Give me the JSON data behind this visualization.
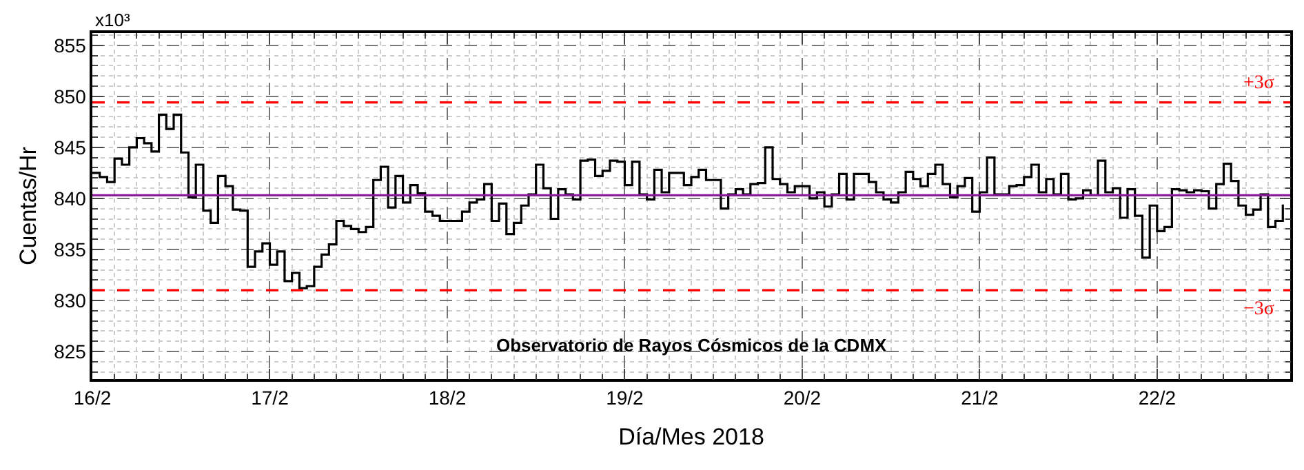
{
  "chart_data": {
    "type": "step",
    "title": "Observatorio de Rayos Cósmicos de la CDMX",
    "xlabel": "Día/Mes 2018",
    "ylabel": "Cuentas/Hr",
    "annotations": [
      "x10³"
    ],
    "x": [
      "2018-02-16T00:00",
      "2018-02-16T01:00",
      "2018-02-16T02:00",
      "2018-02-16T03:00",
      "2018-02-16T04:00",
      "2018-02-16T05:00",
      "2018-02-16T06:00",
      "2018-02-16T07:00",
      "2018-02-16T08:00",
      "2018-02-16T09:00",
      "2018-02-16T10:00",
      "2018-02-16T11:00",
      "2018-02-16T12:00",
      "2018-02-16T13:00",
      "2018-02-16T14:00",
      "2018-02-16T15:00",
      "2018-02-16T16:00",
      "2018-02-16T17:00",
      "2018-02-16T18:00",
      "2018-02-16T19:00",
      "2018-02-16T20:00",
      "2018-02-16T21:00",
      "2018-02-16T22:00",
      "2018-02-16T23:00",
      "2018-02-17T00:00",
      "2018-02-17T01:00",
      "2018-02-17T02:00",
      "2018-02-17T03:00",
      "2018-02-17T04:00",
      "2018-02-17T05:00",
      "2018-02-17T06:00",
      "2018-02-17T07:00",
      "2018-02-17T08:00",
      "2018-02-17T09:00",
      "2018-02-17T10:00",
      "2018-02-17T11:00",
      "2018-02-17T12:00",
      "2018-02-17T13:00",
      "2018-02-17T14:00",
      "2018-02-17T15:00",
      "2018-02-17T16:00",
      "2018-02-17T17:00",
      "2018-02-17T18:00",
      "2018-02-17T19:00",
      "2018-02-17T20:00",
      "2018-02-17T21:00",
      "2018-02-17T22:00",
      "2018-02-17T23:00",
      "2018-02-18T00:00",
      "2018-02-18T01:00",
      "2018-02-18T02:00",
      "2018-02-18T03:00",
      "2018-02-18T04:00",
      "2018-02-18T05:00",
      "2018-02-18T06:00",
      "2018-02-18T07:00",
      "2018-02-18T08:00",
      "2018-02-18T09:00",
      "2018-02-18T10:00",
      "2018-02-18T11:00",
      "2018-02-18T12:00",
      "2018-02-18T13:00",
      "2018-02-18T14:00",
      "2018-02-18T15:00",
      "2018-02-18T16:00",
      "2018-02-18T17:00",
      "2018-02-18T18:00",
      "2018-02-18T19:00",
      "2018-02-18T20:00",
      "2018-02-18T21:00",
      "2018-02-18T22:00",
      "2018-02-18T23:00",
      "2018-02-19T00:00",
      "2018-02-19T01:00",
      "2018-02-19T02:00",
      "2018-02-19T03:00",
      "2018-02-19T04:00",
      "2018-02-19T05:00",
      "2018-02-19T06:00",
      "2018-02-19T07:00",
      "2018-02-19T08:00",
      "2018-02-19T09:00",
      "2018-02-19T10:00",
      "2018-02-19T11:00",
      "2018-02-19T12:00",
      "2018-02-19T13:00",
      "2018-02-19T14:00",
      "2018-02-19T15:00",
      "2018-02-19T16:00",
      "2018-02-19T17:00",
      "2018-02-19T18:00",
      "2018-02-19T19:00",
      "2018-02-19T20:00",
      "2018-02-19T21:00",
      "2018-02-19T22:00",
      "2018-02-19T23:00",
      "2018-02-20T00:00",
      "2018-02-20T01:00",
      "2018-02-20T02:00",
      "2018-02-20T03:00",
      "2018-02-20T04:00",
      "2018-02-20T05:00",
      "2018-02-20T06:00",
      "2018-02-20T07:00",
      "2018-02-20T08:00",
      "2018-02-20T09:00",
      "2018-02-20T10:00",
      "2018-02-20T11:00",
      "2018-02-20T12:00",
      "2018-02-20T13:00",
      "2018-02-20T14:00",
      "2018-02-20T15:00",
      "2018-02-20T16:00",
      "2018-02-20T17:00",
      "2018-02-20T18:00",
      "2018-02-20T19:00",
      "2018-02-20T20:00",
      "2018-02-20T21:00",
      "2018-02-20T22:00",
      "2018-02-20T23:00",
      "2018-02-21T00:00",
      "2018-02-21T01:00",
      "2018-02-21T02:00",
      "2018-02-21T03:00",
      "2018-02-21T04:00",
      "2018-02-21T05:00",
      "2018-02-21T06:00",
      "2018-02-21T07:00",
      "2018-02-21T08:00",
      "2018-02-21T09:00",
      "2018-02-21T10:00",
      "2018-02-21T11:00",
      "2018-02-21T12:00",
      "2018-02-21T13:00",
      "2018-02-21T14:00",
      "2018-02-21T15:00",
      "2018-02-21T16:00",
      "2018-02-21T17:00",
      "2018-02-21T18:00",
      "2018-02-21T19:00",
      "2018-02-21T20:00",
      "2018-02-21T21:00",
      "2018-02-21T22:00",
      "2018-02-21T23:00",
      "2018-02-22T00:00",
      "2018-02-22T01:00",
      "2018-02-22T02:00",
      "2018-02-22T03:00",
      "2018-02-22T04:00",
      "2018-02-22T05:00",
      "2018-02-22T06:00",
      "2018-02-22T07:00",
      "2018-02-22T08:00",
      "2018-02-22T09:00",
      "2018-02-22T10:00",
      "2018-02-22T11:00",
      "2018-02-22T12:00",
      "2018-02-22T13:00",
      "2018-02-22T14:00",
      "2018-02-22T15:00",
      "2018-02-22T16:00",
      "2018-02-22T17:00"
    ],
    "series": [
      {
        "color": "#000000",
        "values": [
          842.5,
          842.1,
          841.6,
          843.9,
          843.3,
          845.0,
          845.9,
          845.4,
          844.6,
          848.2,
          846.8,
          848.2,
          844.5,
          840.1,
          843.3,
          838.8,
          837.6,
          842.2,
          841.2,
          838.9,
          838.8,
          833.3,
          834.8,
          835.6,
          833.5,
          834.8,
          831.9,
          832.7,
          831.2,
          831.4,
          833.3,
          834.5,
          835.5,
          837.8,
          837.3,
          837.0,
          836.7,
          837.2,
          841.8,
          843.1,
          839.1,
          842.2,
          839.6,
          841.3,
          840.5,
          838.7,
          838.3,
          837.8,
          837.8,
          837.8,
          838.7,
          839.6,
          839.9,
          841.4,
          837.8,
          839.5,
          836.5,
          837.6,
          839.3,
          840.4,
          843.3,
          841.0,
          838.0,
          840.9,
          840.4,
          839.9,
          843.7,
          843.8,
          842.2,
          842.7,
          843.7,
          843.6,
          841.3,
          843.6,
          840.4,
          839.9,
          842.8,
          840.6,
          842.5,
          842.5,
          841.3,
          842.1,
          842.8,
          841.8,
          841.8,
          839.0,
          840.4,
          840.9,
          840.4,
          841.4,
          841.5,
          845.0,
          841.9,
          841.4,
          840.6,
          841.2,
          841.2,
          840.0,
          840.6,
          839.2,
          840.4,
          842.4,
          839.9,
          842.4,
          842.4,
          841.6,
          840.6,
          839.9,
          839.6,
          840.6,
          842.6,
          841.9,
          841.2,
          842.4,
          843.3,
          841.4,
          840.1,
          841.2,
          842.0,
          838.7,
          840.6,
          844.0,
          840.4,
          840.4,
          841.2,
          841.3,
          842.1,
          843.3,
          840.6,
          841.9,
          840.4,
          842.4,
          839.9,
          840.0,
          840.8,
          840.3,
          843.7,
          840.6,
          841.0,
          838.1,
          840.9,
          838.3,
          834.2,
          839.3,
          836.8,
          837.2,
          840.9,
          840.8,
          840.6,
          840.8,
          840.7,
          839.0,
          841.4,
          843.4,
          841.7,
          839.3,
          838.4,
          838.9,
          840.4,
          837.2,
          837.8,
          839.4
        ]
      }
    ],
    "xlim": [
      "2018-02-16T00:00",
      "2018-02-22T18:00"
    ],
    "xticks": [
      {
        "value": "2018-02-16",
        "label": "16/2"
      },
      {
        "value": "2018-02-17",
        "label": "17/2"
      },
      {
        "value": "2018-02-18",
        "label": "18/2"
      },
      {
        "value": "2018-02-19",
        "label": "19/2"
      },
      {
        "value": "2018-02-20",
        "label": "20/2"
      },
      {
        "value": "2018-02-21",
        "label": "21/2"
      },
      {
        "value": "2018-02-22",
        "label": "22/2"
      }
    ],
    "ylim": [
      822.3,
      856.2
    ],
    "yticks": [
      825,
      830,
      835,
      840,
      845,
      850,
      855
    ],
    "ref_lines": [
      {
        "axis": "y",
        "value": 849.4,
        "label": "+3σ",
        "color": "#ff0000",
        "line_style": "dashed"
      },
      {
        "axis": "y",
        "value": 831.0,
        "label": "−3σ",
        "color": "#ff0000",
        "line_style": "dashed"
      },
      {
        "axis": "y",
        "value": 840.3,
        "color": "#8b1a9b",
        "line_style": "solid"
      }
    ],
    "grid": true,
    "marker": "none",
    "line_style": "solid"
  }
}
